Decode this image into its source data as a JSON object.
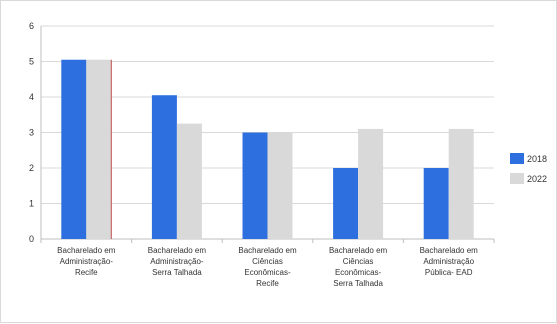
{
  "chart_data": {
    "type": "bar",
    "title": "",
    "xlabel": "",
    "ylabel": "",
    "ylim": [
      0,
      6
    ],
    "yticks": [
      "0",
      "1",
      "2",
      "3",
      "4",
      "5",
      "6"
    ],
    "grid": true,
    "legend_position": "right",
    "categories": [
      [
        "Bacharelado em",
        "Administração-",
        "Recife"
      ],
      [
        "Bacharelado em",
        "Administração-",
        "Serra Talhada"
      ],
      [
        "Bacharelado em",
        "Ciências",
        "Econômicas-",
        "Recife"
      ],
      [
        "Bacharelado em",
        "Ciências",
        "Econômicas-",
        "Serra Talhada"
      ],
      [
        "Bacharelado em",
        "Administração",
        "Pública- EAD"
      ]
    ],
    "series": [
      {
        "name": "2018",
        "color": "#2e6fe0",
        "values": [
          5.05,
          4.05,
          3.0,
          2.0,
          2.0
        ]
      },
      {
        "name": "2022",
        "color": "#d9d9d9",
        "values": [
          5.05,
          3.25,
          3.0,
          3.1,
          3.1
        ]
      }
    ]
  }
}
